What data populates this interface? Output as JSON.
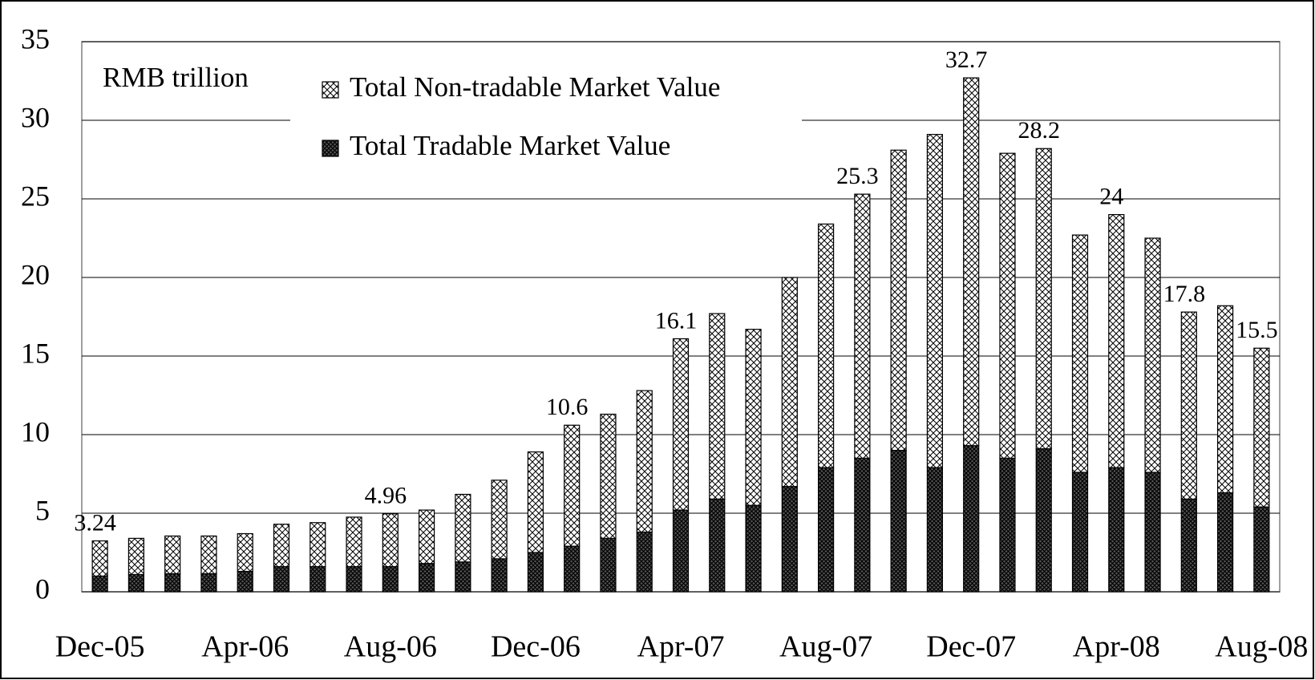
{
  "chart_data": {
    "type": "stacked_bar",
    "annotation": "RMB trillion",
    "categories": [
      "Dec-05",
      null,
      null,
      null,
      "Apr-06",
      null,
      null,
      null,
      "Aug-06",
      null,
      null,
      null,
      "Dec-06",
      null,
      null,
      null,
      "Apr-07",
      null,
      null,
      null,
      "Aug-07",
      null,
      null,
      null,
      "Dec-07",
      null,
      null,
      null,
      "Apr-08",
      null,
      null,
      null,
      "Aug-08"
    ],
    "series": [
      {
        "name": "Total Tradable Market Value",
        "color": "#555555",
        "values": [
          1.0,
          1.1,
          1.15,
          1.15,
          1.3,
          1.6,
          1.6,
          1.6,
          1.6,
          1.8,
          1.9,
          2.1,
          2.5,
          2.9,
          3.4,
          3.8,
          5.2,
          5.9,
          5.5,
          6.7,
          7.9,
          8.5,
          9.0,
          7.9,
          9.3,
          8.5,
          9.1,
          7.6,
          7.9,
          7.6,
          5.9,
          6.3,
          5.4
        ]
      },
      {
        "name": "Total Non-tradable Market Value",
        "color": "#ffffff",
        "values": [
          2.24,
          2.3,
          2.4,
          2.4,
          2.4,
          2.7,
          2.8,
          3.15,
          3.36,
          3.4,
          4.3,
          5.0,
          6.4,
          7.7,
          7.9,
          9.0,
          10.9,
          11.8,
          11.2,
          13.3,
          15.5,
          16.8,
          19.1,
          21.2,
          23.4,
          19.4,
          19.1,
          15.1,
          16.1,
          14.9,
          11.9,
          11.9,
          10.1
        ]
      }
    ],
    "total_labels": [
      3.24,
      null,
      null,
      null,
      null,
      null,
      null,
      null,
      4.96,
      null,
      null,
      null,
      null,
      10.6,
      null,
      null,
      16.1,
      null,
      null,
      null,
      null,
      25.3,
      null,
      null,
      32.7,
      null,
      28.2,
      null,
      24,
      null,
      17.8,
      null,
      15.5
    ],
    "ylim": [
      0,
      35
    ],
    "yticks": [
      0,
      5,
      10,
      15,
      20,
      25,
      30,
      35
    ],
    "grid": true,
    "legend": "top"
  }
}
